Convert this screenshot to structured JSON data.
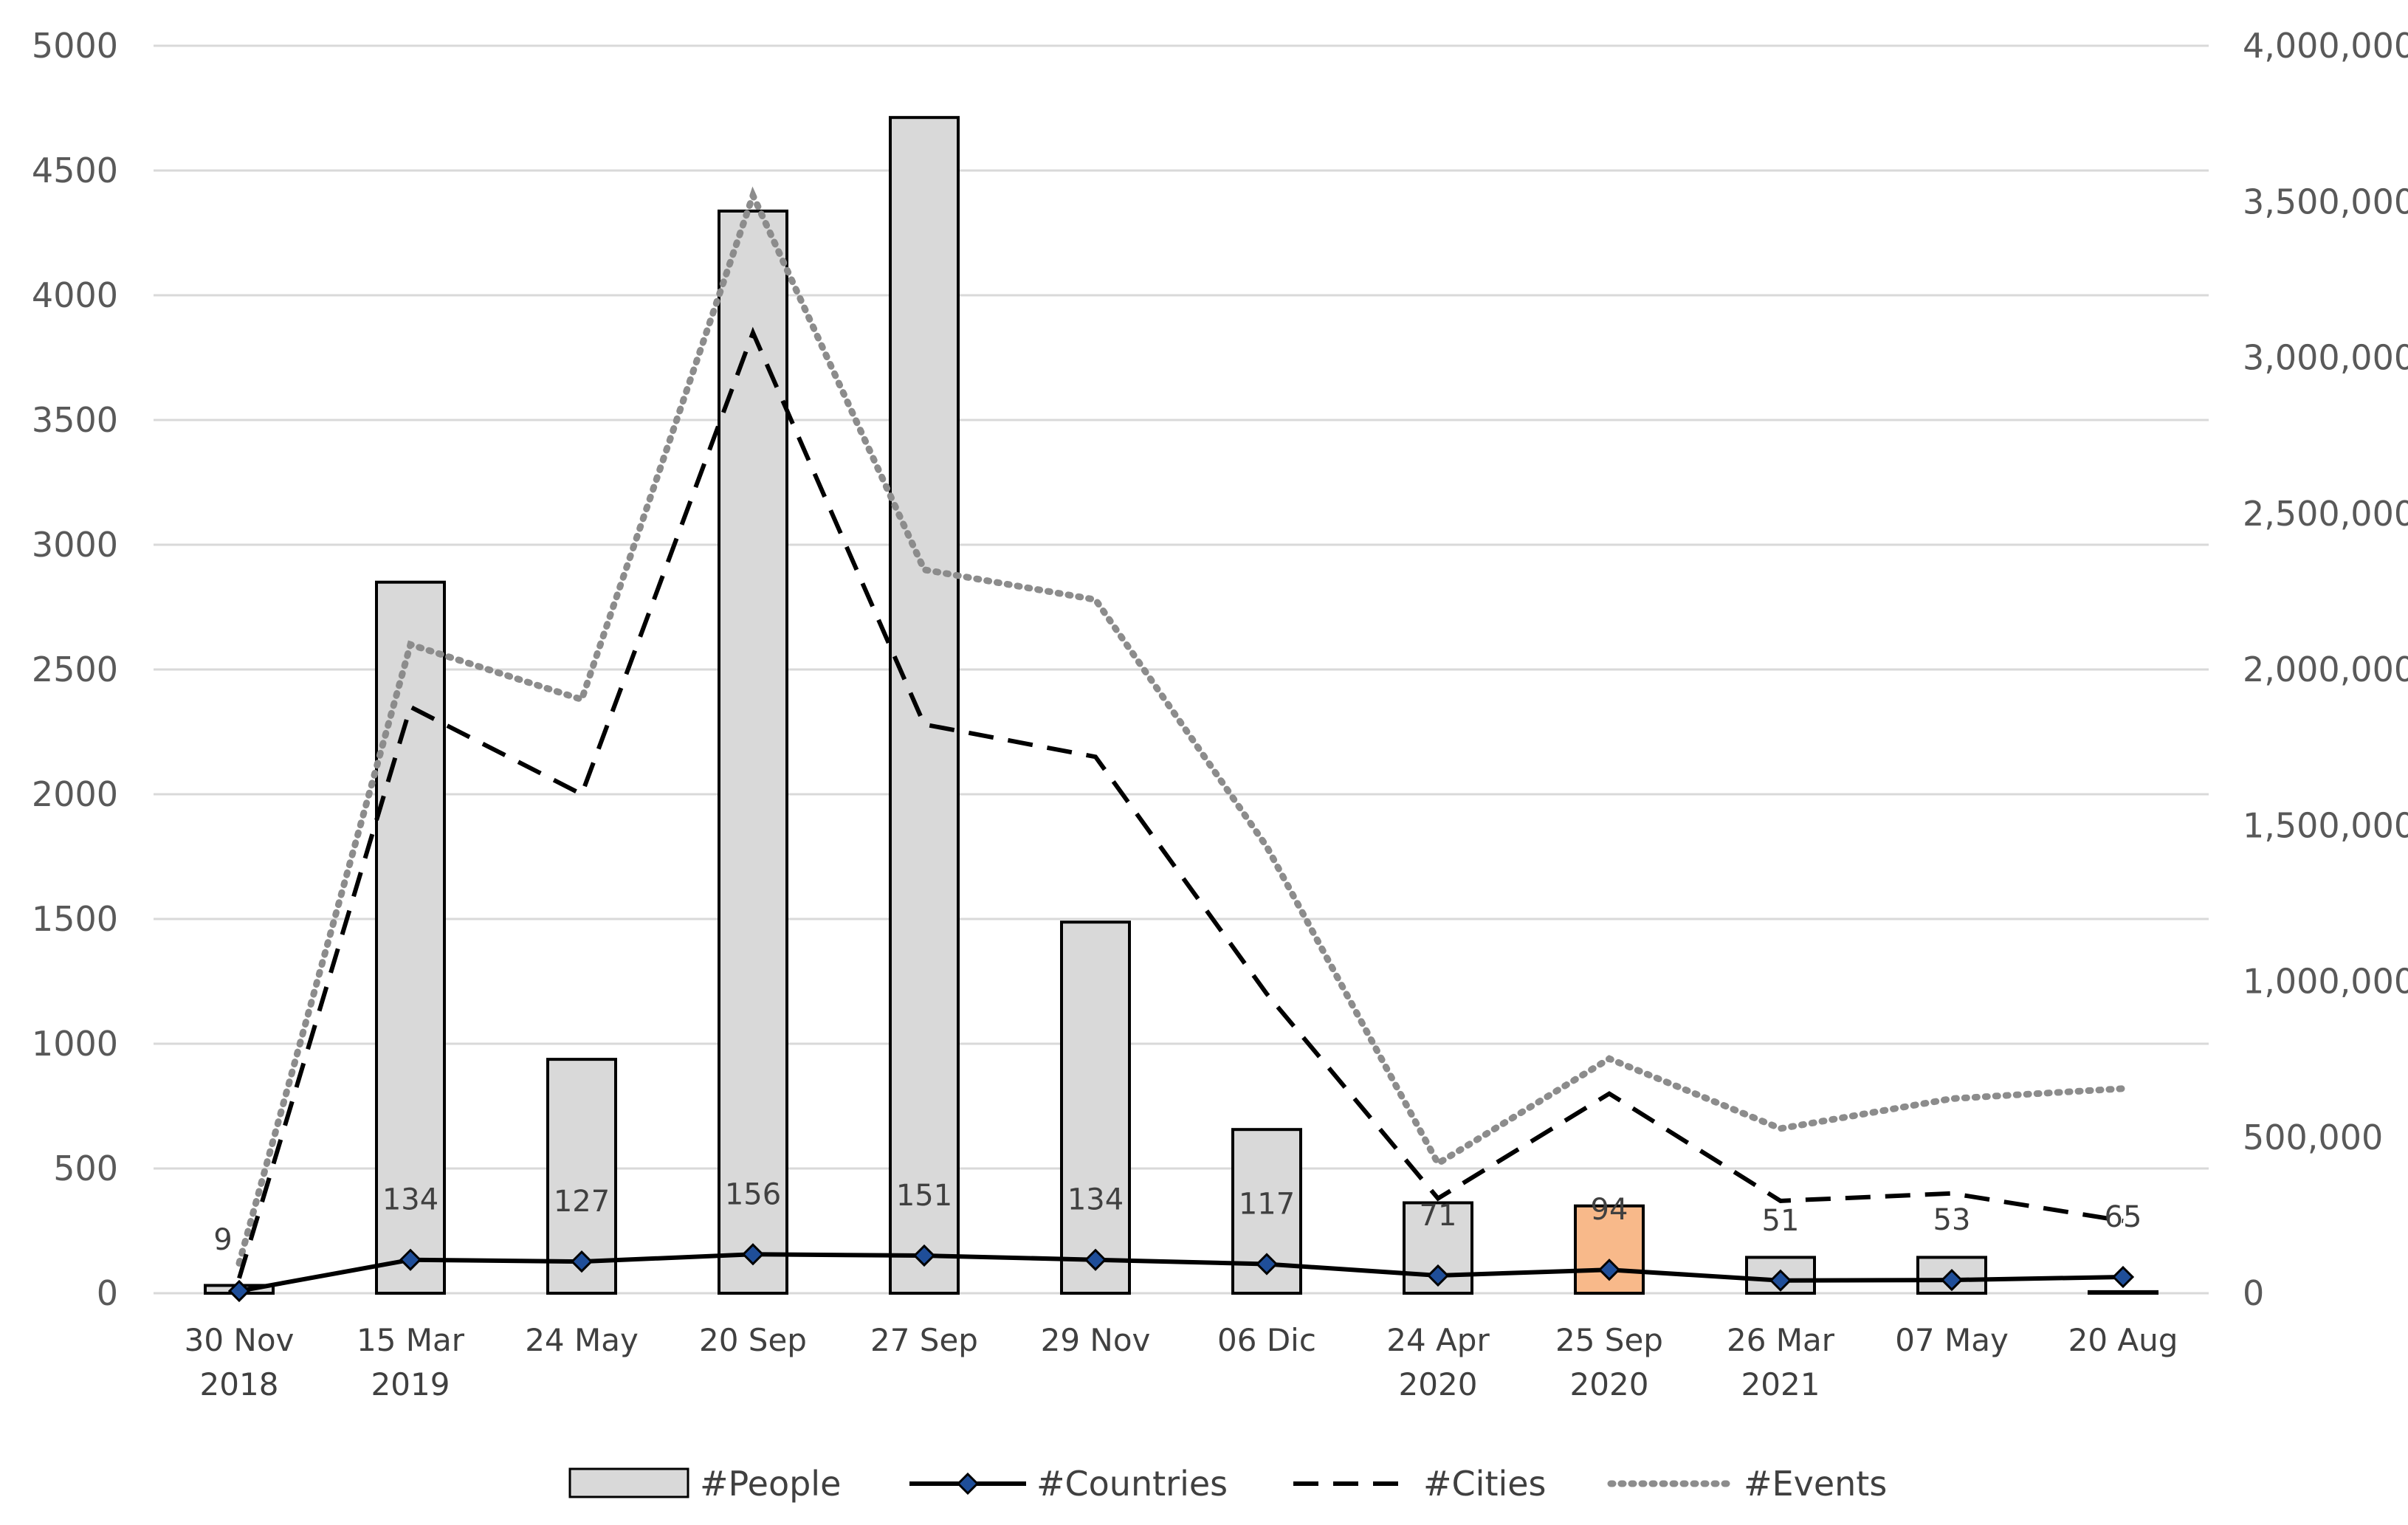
{
  "chart_data": {
    "type": "bar",
    "title": "",
    "categories": [
      [
        "30 Nov",
        "2018"
      ],
      [
        "15 Mar",
        "2019"
      ],
      [
        "24 May"
      ],
      [
        "20 Sep"
      ],
      [
        "27 Sep"
      ],
      [
        "29  Nov"
      ],
      [
        "06 Dic"
      ],
      [
        "24 Apr",
        "2020"
      ],
      [
        "25 Sep",
        "2020"
      ],
      [
        "26 Mar",
        "2021"
      ],
      [
        "07 May"
      ],
      [
        "20 Aug"
      ]
    ],
    "y_left": {
      "min": 0,
      "max": 5000,
      "step": 500,
      "ticks": [
        "0",
        "500",
        "1000",
        "1500",
        "2000",
        "2500",
        "3000",
        "3500",
        "4000",
        "4500",
        "5000"
      ]
    },
    "y_right": {
      "min": 0,
      "max": 4000000,
      "step": 500000,
      "ticks": [
        "0",
        "500,000",
        "1,000,000",
        "1,500,000",
        "2,000,000",
        "2,500,000",
        "3,000,000",
        "3,500,000",
        "4,000,000"
      ]
    },
    "series": [
      {
        "name": "#People",
        "type": "bar",
        "axis": "right",
        "values": [
          25000,
          2280000,
          750000,
          3470000,
          3770000,
          1190000,
          525000,
          290000,
          280000,
          115000,
          115000,
          5000
        ],
        "color": "#d9d9d9",
        "highlight_index": 8,
        "highlight_color": "#f8b98a"
      },
      {
        "name": "#Countries",
        "type": "line",
        "axis": "left",
        "values": [
          9,
          134,
          127,
          156,
          151,
          134,
          117,
          71,
          94,
          51,
          53,
          65
        ],
        "labels": [
          "9",
          "134",
          "127",
          "156",
          "151",
          "134",
          "117",
          "71",
          "94",
          "51",
          "53",
          "65"
        ],
        "color": "#000000",
        "marker_color": "#1f4e99"
      },
      {
        "name": "#Cities",
        "type": "line",
        "axis": "left",
        "style": "dashed",
        "values": [
          60,
          2350,
          2000,
          3850,
          2280,
          2150,
          1200,
          380,
          800,
          370,
          400,
          290
        ],
        "color": "#000000"
      },
      {
        "name": "#Events",
        "type": "line",
        "axis": "left",
        "style": "dotted",
        "values": [
          120,
          2600,
          2380,
          4400,
          2900,
          2780,
          1790,
          520,
          940,
          660,
          780,
          820
        ],
        "color": "#8c8c8c"
      }
    ],
    "legend": {
      "position": "bottom"
    }
  }
}
